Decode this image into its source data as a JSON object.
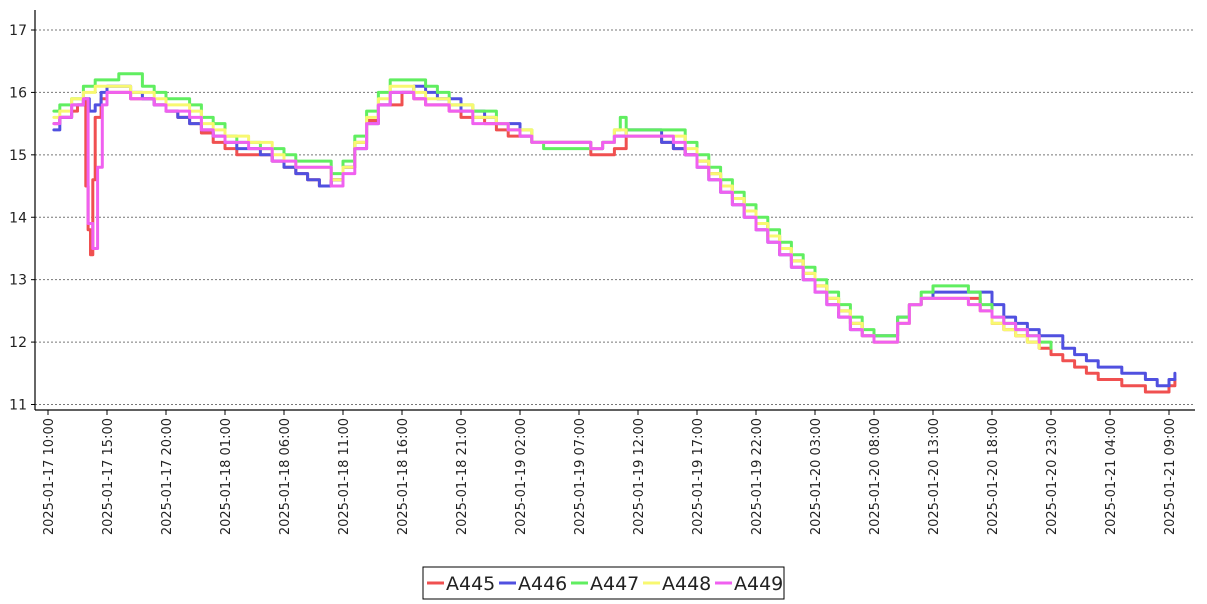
{
  "chart_data": {
    "type": "line",
    "title": "",
    "xlabel": "",
    "ylabel": "",
    "step": true,
    "grid": true,
    "legend_position": "bottom-center",
    "xlim": [
      "2025-01-17 10:00",
      "2025-01-21 11:00"
    ],
    "ylim": [
      11,
      17
    ],
    "y_ticks": [
      11,
      12,
      13,
      14,
      15,
      16,
      17
    ],
    "x_ticks": [
      "2025-01-17 10:00",
      "2025-01-17 15:00",
      "2025-01-17 20:00",
      "2025-01-18 01:00",
      "2025-01-18 06:00",
      "2025-01-18 11:00",
      "2025-01-18 16:00",
      "2025-01-18 21:00",
      "2025-01-19 02:00",
      "2025-01-19 07:00",
      "2025-01-19 12:00",
      "2025-01-19 17:00",
      "2025-01-19 22:00",
      "2025-01-20 03:00",
      "2025-01-20 08:00",
      "2025-01-20 13:00",
      "2025-01-20 18:00",
      "2025-01-20 23:00",
      "2025-01-21 04:00",
      "2025-01-21 09:00"
    ],
    "series": [
      {
        "name": "A445",
        "color": "#f05050",
        "x": [
          "2025-01-17 10:30",
          "2025-01-17 11:00",
          "2025-01-17 12:00",
          "2025-01-17 12:30",
          "2025-01-17 13:00",
          "2025-01-17 13:12",
          "2025-01-17 13:24",
          "2025-01-17 13:36",
          "2025-01-17 13:48",
          "2025-01-17 14:00",
          "2025-01-17 14:30",
          "2025-01-17 15:00",
          "2025-01-17 17:00",
          "2025-01-17 19:00",
          "2025-01-17 20:00",
          "2025-01-17 21:00",
          "2025-01-17 22:00",
          "2025-01-17 23:00",
          "2025-01-18 00:00",
          "2025-01-18 01:00",
          "2025-01-18 02:00",
          "2025-01-18 04:00",
          "2025-01-18 05:00",
          "2025-01-18 06:00",
          "2025-01-18 07:00",
          "2025-01-18 08:00",
          "2025-01-18 09:00",
          "2025-01-18 10:00",
          "2025-01-18 11:00",
          "2025-01-18 12:00",
          "2025-01-18 13:00",
          "2025-01-18 14:00",
          "2025-01-18 16:00",
          "2025-01-18 17:00",
          "2025-01-18 18:00",
          "2025-01-18 20:00",
          "2025-01-18 21:00",
          "2025-01-18 23:00",
          "2025-01-19 00:00",
          "2025-01-19 01:00",
          "2025-01-19 03:00",
          "2025-01-19 08:00",
          "2025-01-19 09:00",
          "2025-01-19 10:00",
          "2025-01-19 11:00",
          "2025-01-19 14:00",
          "2025-01-19 15:00",
          "2025-01-19 16:00",
          "2025-01-19 17:00",
          "2025-01-19 18:00",
          "2025-01-19 19:00",
          "2025-01-19 20:00",
          "2025-01-19 21:00",
          "2025-01-19 22:00",
          "2025-01-19 23:00",
          "2025-01-20 00:00",
          "2025-01-20 01:00",
          "2025-01-20 02:00",
          "2025-01-20 03:00",
          "2025-01-20 04:00",
          "2025-01-20 05:00",
          "2025-01-20 06:00",
          "2025-01-20 07:00",
          "2025-01-20 08:00",
          "2025-01-20 10:00",
          "2025-01-20 11:00",
          "2025-01-20 12:00",
          "2025-01-20 13:00",
          "2025-01-20 14:00",
          "2025-01-20 17:00",
          "2025-01-20 18:00",
          "2025-01-20 19:00",
          "2025-01-20 20:00",
          "2025-01-20 21:00",
          "2025-01-20 22:00",
          "2025-01-20 23:00",
          "2025-01-21 00:00",
          "2025-01-21 01:00",
          "2025-01-21 02:00",
          "2025-01-21 03:00",
          "2025-01-21 05:00",
          "2025-01-21 07:00",
          "2025-01-21 09:00",
          "2025-01-21 09:30"
        ],
        "values": [
          15.5,
          15.6,
          15.7,
          15.8,
          15.9,
          14.5,
          13.8,
          13.4,
          14.6,
          15.6,
          15.9,
          16.0,
          15.9,
          15.8,
          15.7,
          15.6,
          15.5,
          15.35,
          15.2,
          15.1,
          15.0,
          15.0,
          14.9,
          14.8,
          14.7,
          14.6,
          14.5,
          14.6,
          14.8,
          15.2,
          15.55,
          15.8,
          16.0,
          15.9,
          15.8,
          15.7,
          15.6,
          15.5,
          15.4,
          15.3,
          15.2,
          15.0,
          15.0,
          15.1,
          15.3,
          15.2,
          15.1,
          15.0,
          14.9,
          14.7,
          14.5,
          14.3,
          14.1,
          13.9,
          13.7,
          13.5,
          13.3,
          13.1,
          12.9,
          12.7,
          12.5,
          12.3,
          12.1,
          12.0,
          12.3,
          12.6,
          12.7,
          12.7,
          12.7,
          12.5,
          12.3,
          12.2,
          12.1,
          12.0,
          11.9,
          11.8,
          11.7,
          11.6,
          11.5,
          11.4,
          11.3,
          11.2,
          11.3,
          11.4
        ]
      },
      {
        "name": "A446",
        "color": "#5050e0",
        "x": [
          "2025-01-17 10:30",
          "2025-01-17 11:00",
          "2025-01-17 12:00",
          "2025-01-17 13:00",
          "2025-01-17 13:30",
          "2025-01-17 14:00",
          "2025-01-17 14:30",
          "2025-01-17 15:00",
          "2025-01-17 17:00",
          "2025-01-17 18:00",
          "2025-01-17 19:00",
          "2025-01-17 20:00",
          "2025-01-17 21:00",
          "2025-01-17 22:00",
          "2025-01-17 23:00",
          "2025-01-18 00:00",
          "2025-01-18 01:00",
          "2025-01-18 02:00",
          "2025-01-18 04:00",
          "2025-01-18 05:00",
          "2025-01-18 06:00",
          "2025-01-18 07:00",
          "2025-01-18 08:00",
          "2025-01-18 09:00",
          "2025-01-18 10:00",
          "2025-01-18 11:00",
          "2025-01-18 12:00",
          "2025-01-18 13:00",
          "2025-01-18 14:00",
          "2025-01-18 15:00",
          "2025-01-18 17:00",
          "2025-01-18 18:00",
          "2025-01-18 19:00",
          "2025-01-18 21:00",
          "2025-01-18 23:00",
          "2025-01-19 00:00",
          "2025-01-19 02:00",
          "2025-01-19 03:00",
          "2025-01-19 08:00",
          "2025-01-19 09:00",
          "2025-01-19 10:00",
          "2025-01-19 11:00",
          "2025-01-19 14:00",
          "2025-01-19 15:00",
          "2025-01-19 16:00",
          "2025-01-19 17:00",
          "2025-01-19 18:00",
          "2025-01-19 19:00",
          "2025-01-19 20:00",
          "2025-01-19 21:00",
          "2025-01-19 22:00",
          "2025-01-19 23:00",
          "2025-01-20 00:00",
          "2025-01-20 01:00",
          "2025-01-20 02:00",
          "2025-01-20 03:00",
          "2025-01-20 04:00",
          "2025-01-20 05:00",
          "2025-01-20 06:00",
          "2025-01-20 07:00",
          "2025-01-20 08:00",
          "2025-01-20 10:00",
          "2025-01-20 11:00",
          "2025-01-20 12:00",
          "2025-01-20 13:00",
          "2025-01-20 17:00",
          "2025-01-20 18:00",
          "2025-01-20 19:00",
          "2025-01-20 20:00",
          "2025-01-20 21:00",
          "2025-01-20 22:00",
          "2025-01-21 00:00",
          "2025-01-21 01:00",
          "2025-01-21 02:00",
          "2025-01-21 03:00",
          "2025-01-21 05:00",
          "2025-01-21 07:00",
          "2025-01-21 08:00",
          "2025-01-21 09:00",
          "2025-01-21 09:30"
        ],
        "values": [
          15.4,
          15.6,
          15.8,
          15.9,
          15.7,
          15.8,
          16.0,
          16.1,
          16.0,
          15.9,
          15.8,
          15.7,
          15.6,
          15.5,
          15.4,
          15.3,
          15.2,
          15.1,
          15.0,
          14.9,
          14.8,
          14.7,
          14.6,
          14.5,
          14.6,
          14.8,
          15.1,
          15.5,
          15.8,
          16.0,
          16.1,
          16.0,
          15.9,
          15.7,
          15.6,
          15.5,
          15.3,
          15.2,
          15.1,
          15.2,
          15.3,
          15.4,
          15.2,
          15.1,
          15.0,
          14.8,
          14.6,
          14.4,
          14.2,
          14.0,
          13.8,
          13.6,
          13.4,
          13.2,
          13.0,
          12.8,
          12.6,
          12.4,
          12.2,
          12.1,
          12.1,
          12.4,
          12.6,
          12.7,
          12.8,
          12.8,
          12.6,
          12.4,
          12.3,
          12.2,
          12.1,
          11.9,
          11.8,
          11.7,
          11.6,
          11.5,
          11.4,
          11.3,
          11.4,
          11.5
        ]
      },
      {
        "name": "A447",
        "color": "#60ee60",
        "x": [
          "2025-01-17 10:30",
          "2025-01-17 11:00",
          "2025-01-17 12:00",
          "2025-01-17 13:00",
          "2025-01-17 14:00",
          "2025-01-17 15:00",
          "2025-01-17 16:00",
          "2025-01-17 18:00",
          "2025-01-17 19:00",
          "2025-01-17 20:00",
          "2025-01-17 22:00",
          "2025-01-17 23:00",
          "2025-01-18 00:00",
          "2025-01-18 01:00",
          "2025-01-18 02:00",
          "2025-01-18 04:00",
          "2025-01-18 06:00",
          "2025-01-18 07:00",
          "2025-01-18 10:00",
          "2025-01-18 11:00",
          "2025-01-18 12:00",
          "2025-01-18 13:00",
          "2025-01-18 14:00",
          "2025-01-18 15:00",
          "2025-01-18 18:00",
          "2025-01-18 19:00",
          "2025-01-18 20:00",
          "2025-01-18 22:00",
          "2025-01-19 00:00",
          "2025-01-19 01:00",
          "2025-01-19 03:00",
          "2025-01-19 04:00",
          "2025-01-19 08:00",
          "2025-01-19 09:00",
          "2025-01-19 10:00",
          "2025-01-19 10:30",
          "2025-01-19 11:00",
          "2025-01-19 15:00",
          "2025-01-19 16:00",
          "2025-01-19 17:00",
          "2025-01-19 18:00",
          "2025-01-19 19:00",
          "2025-01-19 20:00",
          "2025-01-19 21:00",
          "2025-01-19 22:00",
          "2025-01-19 23:00",
          "2025-01-20 00:00",
          "2025-01-20 01:00",
          "2025-01-20 02:00",
          "2025-01-20 03:00",
          "2025-01-20 04:00",
          "2025-01-20 05:00",
          "2025-01-20 06:00",
          "2025-01-20 07:00",
          "2025-01-20 08:00",
          "2025-01-20 10:00",
          "2025-01-20 11:00",
          "2025-01-20 12:00",
          "2025-01-20 13:00",
          "2025-01-20 16:00",
          "2025-01-20 17:00",
          "2025-01-20 18:00",
          "2025-01-20 19:00",
          "2025-01-20 20:00",
          "2025-01-20 21:00",
          "2025-01-20 22:00",
          "2025-01-20 23:00"
        ],
        "values": [
          15.7,
          15.8,
          15.9,
          16.1,
          16.2,
          16.2,
          16.3,
          16.1,
          16.0,
          15.9,
          15.8,
          15.6,
          15.5,
          15.3,
          15.2,
          15.1,
          15.0,
          14.9,
          14.7,
          14.9,
          15.3,
          15.7,
          16.0,
          16.2,
          16.1,
          16.0,
          15.8,
          15.7,
          15.5,
          15.4,
          15.2,
          15.1,
          15.1,
          15.2,
          15.4,
          15.6,
          15.4,
          15.4,
          15.2,
          15.0,
          14.8,
          14.6,
          14.4,
          14.2,
          14.0,
          13.8,
          13.6,
          13.4,
          13.2,
          13.0,
          12.8,
          12.6,
          12.4,
          12.2,
          12.1,
          12.4,
          12.6,
          12.8,
          12.9,
          12.8,
          12.6,
          12.4,
          12.3,
          12.2,
          12.1,
          12.0,
          11.9
        ]
      },
      {
        "name": "A448",
        "color": "#f8f870",
        "x": [
          "2025-01-17 10:30",
          "2025-01-17 11:00",
          "2025-01-17 12:00",
          "2025-01-17 13:00",
          "2025-01-17 14:00",
          "2025-01-17 15:00",
          "2025-01-17 17:00",
          "2025-01-17 19:00",
          "2025-01-17 20:00",
          "2025-01-17 22:00",
          "2025-01-17 23:00",
          "2025-01-18 00:00",
          "2025-01-18 01:00",
          "2025-01-18 03:00",
          "2025-01-18 05:00",
          "2025-01-18 06:00",
          "2025-01-18 07:00",
          "2025-01-18 10:00",
          "2025-01-18 11:00",
          "2025-01-18 12:00",
          "2025-01-18 13:00",
          "2025-01-18 14:00",
          "2025-01-18 15:00",
          "2025-01-18 17:00",
          "2025-01-18 18:00",
          "2025-01-18 20:00",
          "2025-01-18 22:00",
          "2025-01-19 00:00",
          "2025-01-19 01:00",
          "2025-01-19 03:00",
          "2025-01-19 08:00",
          "2025-01-19 09:00",
          "2025-01-19 10:00",
          "2025-01-19 11:00",
          "2025-01-19 15:00",
          "2025-01-19 16:00",
          "2025-01-19 17:00",
          "2025-01-19 18:00",
          "2025-01-19 19:00",
          "2025-01-19 20:00",
          "2025-01-19 21:00",
          "2025-01-19 22:00",
          "2025-01-19 23:00",
          "2025-01-20 00:00",
          "2025-01-20 01:00",
          "2025-01-20 02:00",
          "2025-01-20 03:00",
          "2025-01-20 04:00",
          "2025-01-20 05:00",
          "2025-01-20 06:00",
          "2025-01-20 07:00",
          "2025-01-20 08:00",
          "2025-01-20 10:00",
          "2025-01-20 11:00",
          "2025-01-20 12:00",
          "2025-01-20 13:00",
          "2025-01-20 16:00",
          "2025-01-20 17:00",
          "2025-01-20 18:00",
          "2025-01-20 19:00",
          "2025-01-20 20:00",
          "2025-01-20 21:00",
          "2025-01-20 22:00"
        ],
        "values": [
          15.6,
          15.7,
          15.9,
          16.0,
          16.1,
          16.1,
          16.0,
          15.9,
          15.8,
          15.7,
          15.5,
          15.4,
          15.3,
          15.2,
          15.0,
          14.9,
          14.8,
          14.6,
          14.8,
          15.2,
          15.6,
          15.9,
          16.1,
          16.0,
          15.9,
          15.8,
          15.6,
          15.5,
          15.4,
          15.2,
          15.1,
          15.2,
          15.4,
          15.3,
          15.3,
          15.1,
          14.9,
          14.7,
          14.5,
          14.3,
          14.1,
          13.9,
          13.7,
          13.5,
          13.3,
          13.1,
          12.9,
          12.7,
          12.5,
          12.3,
          12.1,
          12.0,
          12.3,
          12.6,
          12.7,
          12.7,
          12.6,
          12.5,
          12.3,
          12.2,
          12.1,
          12.0,
          11.9
        ]
      },
      {
        "name": "A449",
        "color": "#f060f0",
        "x": [
          "2025-01-17 10:30",
          "2025-01-17 11:00",
          "2025-01-17 12:00",
          "2025-01-17 13:00",
          "2025-01-17 13:24",
          "2025-01-17 13:48",
          "2025-01-17 14:12",
          "2025-01-17 14:36",
          "2025-01-17 15:00",
          "2025-01-17 17:00",
          "2025-01-17 19:00",
          "2025-01-17 20:00",
          "2025-01-17 22:00",
          "2025-01-17 23:00",
          "2025-01-18 00:00",
          "2025-01-18 01:00",
          "2025-01-18 03:00",
          "2025-01-18 05:00",
          "2025-01-18 06:00",
          "2025-01-18 07:00",
          "2025-01-18 10:00",
          "2025-01-18 11:00",
          "2025-01-18 12:00",
          "2025-01-18 13:00",
          "2025-01-18 14:00",
          "2025-01-18 15:00",
          "2025-01-18 17:00",
          "2025-01-18 18:00",
          "2025-01-18 20:00",
          "2025-01-18 22:00",
          "2025-01-19 00:00",
          "2025-01-19 01:00",
          "2025-01-19 02:00",
          "2025-01-19 03:00",
          "2025-01-19 08:00",
          "2025-01-19 09:00",
          "2025-01-19 10:00",
          "2025-01-19 11:00",
          "2025-01-19 15:00",
          "2025-01-19 16:00",
          "2025-01-19 17:00",
          "2025-01-19 18:00",
          "2025-01-19 19:00",
          "2025-01-19 20:00",
          "2025-01-19 21:00",
          "2025-01-19 22:00",
          "2025-01-19 23:00",
          "2025-01-20 00:00",
          "2025-01-20 01:00",
          "2025-01-20 02:00",
          "2025-01-20 03:00",
          "2025-01-20 04:00",
          "2025-01-20 05:00",
          "2025-01-20 06:00",
          "2025-01-20 07:00",
          "2025-01-20 08:00",
          "2025-01-20 10:00",
          "2025-01-20 11:00",
          "2025-01-20 12:00",
          "2025-01-20 13:00",
          "2025-01-20 16:00",
          "2025-01-20 17:00",
          "2025-01-20 18:00",
          "2025-01-20 19:00",
          "2025-01-20 20:00",
          "2025-01-20 21:00",
          "2025-01-20 22:00"
        ],
        "values": [
          15.5,
          15.6,
          15.8,
          15.9,
          13.9,
          13.5,
          14.8,
          15.8,
          16.0,
          15.9,
          15.8,
          15.7,
          15.6,
          15.4,
          15.3,
          15.2,
          15.1,
          14.9,
          14.9,
          14.8,
          14.5,
          14.7,
          15.1,
          15.5,
          15.8,
          16.0,
          15.9,
          15.8,
          15.7,
          15.5,
          15.5,
          15.4,
          15.3,
          15.2,
          15.1,
          15.2,
          15.3,
          15.3,
          15.2,
          15.0,
          14.8,
          14.6,
          14.4,
          14.2,
          14.0,
          13.8,
          13.6,
          13.4,
          13.2,
          13.0,
          12.8,
          12.6,
          12.4,
          12.2,
          12.1,
          12.0,
          12.3,
          12.6,
          12.7,
          12.7,
          12.6,
          12.5,
          12.4,
          12.3,
          12.2,
          12.1,
          12.0
        ]
      }
    ]
  }
}
